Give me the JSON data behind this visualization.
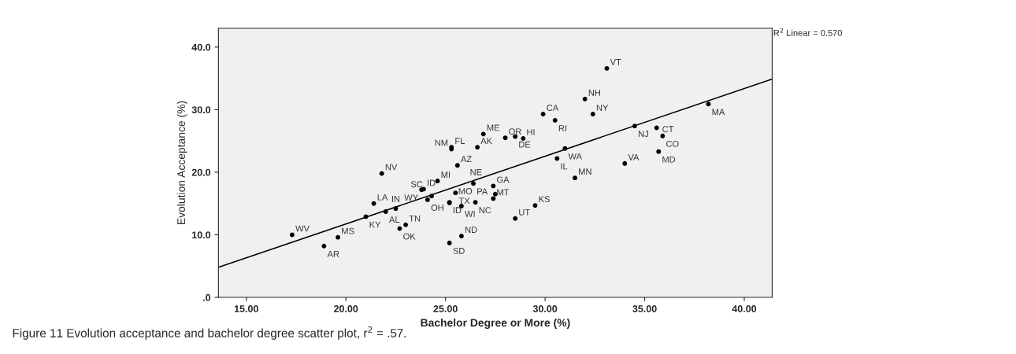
{
  "chart_data": {
    "type": "scatter",
    "xlabel": "Bachelor Degree or More (%)",
    "ylabel": "Evolution Acceptance (%)",
    "xlim": [
      13.6,
      41.4
    ],
    "ylim": [
      0,
      43
    ],
    "xticks": [
      {
        "value": 15,
        "label": "15.00"
      },
      {
        "value": 20,
        "label": "20.00"
      },
      {
        "value": 25,
        "label": "25.00"
      },
      {
        "value": 30,
        "label": "30.00"
      },
      {
        "value": 35,
        "label": "35.00"
      },
      {
        "value": 40,
        "label": "40.00"
      }
    ],
    "yticks": [
      {
        "value": 0,
        "label": ".0"
      },
      {
        "value": 10,
        "label": "10.0"
      },
      {
        "value": 20,
        "label": "20.0"
      },
      {
        "value": 30,
        "label": "30.0"
      },
      {
        "value": 40,
        "label": "40.0"
      }
    ],
    "grid": false,
    "legend": false,
    "series": [
      {
        "color": "#000000",
        "marker": "circle",
        "x": [
          21.8,
          17.3,
          19.6,
          18.9,
          21.4,
          21.0,
          22.0,
          22.5,
          22.7,
          23.0,
          24.1,
          24.3,
          23.8,
          23.9,
          24.6,
          25.6,
          25.5,
          25.2,
          25.2,
          25.8,
          25.2,
          25.8,
          26.4,
          26.5,
          25.3,
          25.3,
          26.6,
          26.9,
          33.1,
          32.0,
          32.4,
          29.9,
          30.5,
          28.0,
          28.5,
          28.9,
          31.0,
          30.6,
          31.5,
          34.0,
          34.5,
          35.6,
          35.9,
          35.7,
          38.2,
          27.4,
          27.5,
          27.4,
          29.5,
          28.5
        ],
        "values": [
          19.8,
          10.0,
          9.6,
          8.2,
          15.0,
          12.9,
          13.7,
          14.2,
          11.0,
          11.6,
          15.6,
          16.2,
          17.2,
          17.3,
          18.6,
          21.1,
          16.7,
          15.2,
          15.1,
          14.6,
          8.7,
          9.8,
          18.2,
          15.2,
          24.0,
          23.7,
          24.0,
          26.1,
          36.6,
          31.7,
          29.3,
          29.3,
          28.3,
          25.5,
          25.7,
          25.4,
          23.8,
          22.2,
          19.1,
          21.4,
          27.4,
          27.1,
          25.8,
          23.3,
          30.9,
          17.8,
          16.5,
          15.8,
          14.7,
          12.6
        ],
        "value_labels": [
          "NV",
          "WV",
          "MS",
          "AR",
          "LA",
          "KY",
          "AL",
          "IN",
          "OK",
          "TN",
          "OH",
          "SC",
          "WY",
          "ID",
          "MI",
          "AZ",
          "TX",
          "ID",
          "MO",
          "WI",
          "SD",
          "ND",
          "PA",
          "NC",
          "FL",
          "NM",
          "AK",
          "ME",
          "VT",
          "NH",
          "NY",
          "CA",
          "RI",
          "OR",
          "DE",
          "HI",
          "WA",
          "IL",
          "MN",
          "VA",
          "NJ",
          "CT",
          "CO",
          "MD",
          "MA",
          "GA",
          null,
          "MT",
          "KS",
          "UT"
        ]
      },
      {
        "type": "line",
        "color": "#000000",
        "x": [
          13.6,
          41.4
        ],
        "values": [
          4.8,
          34.9
        ]
      }
    ],
    "annotations": [
      {
        "text": "NE",
        "x": 27.0,
        "y": 19.0
      },
      "R$^{2}$ Linear = 0.570",
      "Figure 11 Evolution acceptance and bachelor degree scatter plot, r$^{2}$ = .57."
    ]
  }
}
